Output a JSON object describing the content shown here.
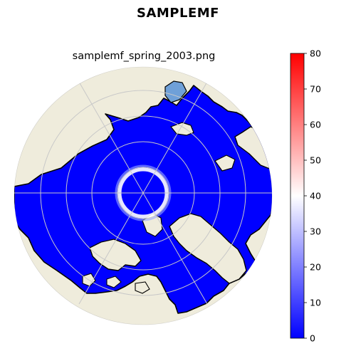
{
  "figure": {
    "suptitle": "SAMPLEMF",
    "subtitle": "samplemf_spring_2003.png"
  },
  "map": {
    "projection": "north-polar-stereographic",
    "land_color": "#efecdc",
    "data_color": "#0000ff",
    "coastline_color": "#000000",
    "gridline_color": "#c8c8c8"
  },
  "colorbar": {
    "ticks": [
      "80",
      "70",
      "60",
      "50",
      "40",
      "30",
      "20",
      "10",
      "0"
    ],
    "min": 0,
    "max": 80,
    "colors": [
      "#0000ff",
      "#ffffff",
      "#ff0000"
    ]
  }
}
